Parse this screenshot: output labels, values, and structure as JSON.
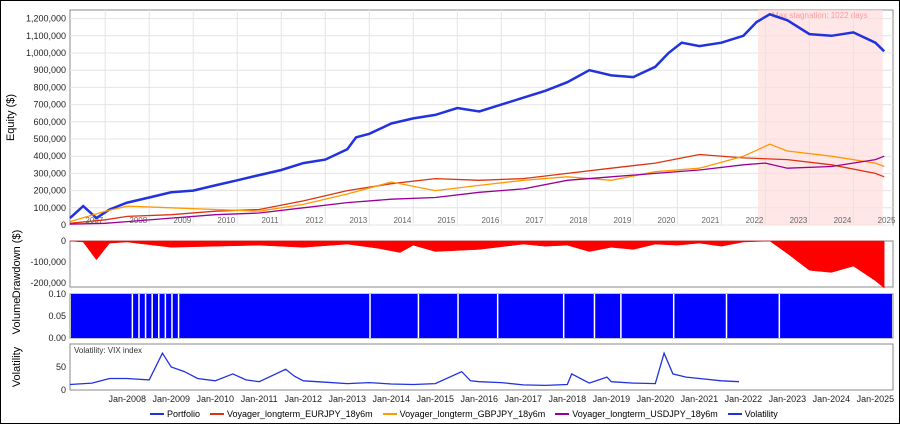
{
  "chart_data": [
    {
      "type": "line",
      "panel": "equity",
      "ylabel": "Equity ($)",
      "ylim": [
        0,
        1250000
      ],
      "yticks": [
        "0",
        "100,000",
        "200,000",
        "300,000",
        "400,000",
        "500,000",
        "600,000",
        "700,000",
        "800,000",
        "900,000",
        "1,000,000",
        "1,100,000",
        "1,200,000"
      ],
      "year_labels": [
        "2007",
        "2008",
        "2009",
        "2010",
        "2011",
        "2012",
        "2013",
        "2014",
        "2015",
        "2016",
        "2017",
        "2018",
        "2019",
        "2020",
        "2021",
        "2022",
        "2023",
        "2024",
        "2025"
      ],
      "annotation": "Max stagnation: 1022 days",
      "shaded_region": [
        "2022-05",
        "2025-03"
      ],
      "series": [
        {
          "name": "Portfolio",
          "color": "#2233dd",
          "x": [
            2006.7,
            2007.0,
            2007.3,
            2007.6,
            2008.0,
            2008.5,
            2009.0,
            2009.5,
            2010.0,
            2010.5,
            2011.0,
            2011.5,
            2012.0,
            2012.5,
            2013.0,
            2013.2,
            2013.5,
            2014.0,
            2014.5,
            2015.0,
            2015.5,
            2016.0,
            2016.5,
            2017.0,
            2017.5,
            2018.0,
            2018.5,
            2019.0,
            2019.5,
            2020.0,
            2020.3,
            2020.6,
            2021.0,
            2021.5,
            2022.0,
            2022.3,
            2022.6,
            2023.0,
            2023.5,
            2024.0,
            2024.5,
            2025.0,
            2025.2
          ],
          "values": [
            40000,
            110000,
            40000,
            90000,
            130000,
            160000,
            190000,
            200000,
            230000,
            260000,
            290000,
            320000,
            360000,
            380000,
            440000,
            510000,
            530000,
            590000,
            620000,
            640000,
            680000,
            660000,
            700000,
            740000,
            780000,
            830000,
            900000,
            870000,
            860000,
            920000,
            1000000,
            1060000,
            1040000,
            1060000,
            1100000,
            1180000,
            1225000,
            1190000,
            1110000,
            1100000,
            1120000,
            1060000,
            1010000
          ]
        },
        {
          "name": "Voyager_longterm_EURJPY_18y6m",
          "color": "#dd3311",
          "x": [
            2006.7,
            2007.5,
            2008.0,
            2009.0,
            2010.0,
            2011.0,
            2012.0,
            2013.0,
            2014.0,
            2015.0,
            2016.0,
            2017.0,
            2018.0,
            2019.0,
            2020.0,
            2021.0,
            2022.0,
            2023.0,
            2024.0,
            2025.0,
            2025.2
          ],
          "values": [
            10000,
            30000,
            50000,
            60000,
            80000,
            90000,
            140000,
            200000,
            240000,
            270000,
            260000,
            270000,
            300000,
            330000,
            360000,
            410000,
            390000,
            380000,
            350000,
            300000,
            280000
          ]
        },
        {
          "name": "Voyager_longterm_GBPJPY_18y6m",
          "color": "#ff9900",
          "x": [
            2006.7,
            2007.5,
            2008.0,
            2009.0,
            2010.0,
            2011.0,
            2012.0,
            2013.0,
            2014.0,
            2015.0,
            2016.0,
            2017.0,
            2018.0,
            2019.0,
            2020.0,
            2021.0,
            2022.0,
            2022.6,
            2023.0,
            2024.0,
            2025.0,
            2025.2
          ],
          "values": [
            20000,
            80000,
            110000,
            100000,
            90000,
            80000,
            120000,
            180000,
            250000,
            200000,
            230000,
            260000,
            280000,
            260000,
            310000,
            330000,
            400000,
            470000,
            430000,
            400000,
            360000,
            340000
          ]
        },
        {
          "name": "Voyager_longterm_USDJPY_18y6m",
          "color": "#990099",
          "x": [
            2006.7,
            2007.5,
            2008.0,
            2009.0,
            2010.0,
            2011.0,
            2012.0,
            2013.0,
            2014.0,
            2015.0,
            2016.0,
            2017.0,
            2018.0,
            2019.0,
            2020.0,
            2021.0,
            2022.0,
            2022.5,
            2023.0,
            2024.0,
            2025.0,
            2025.2
          ],
          "values": [
            5000,
            10000,
            20000,
            40000,
            60000,
            70000,
            100000,
            130000,
            150000,
            160000,
            190000,
            210000,
            260000,
            280000,
            300000,
            320000,
            350000,
            360000,
            330000,
            340000,
            380000,
            400000
          ]
        }
      ]
    },
    {
      "type": "area",
      "panel": "drawdown",
      "ylabel": "Drawdown ($)",
      "ylim": [
        -220000,
        0
      ],
      "yticks": [
        "0",
        "-100,000",
        "-200,000"
      ],
      "series": [
        {
          "name": "Drawdown",
          "color": "#ff0000",
          "x": [
            2006.7,
            2007.0,
            2007.3,
            2007.6,
            2008.0,
            2009.0,
            2010.0,
            2011.0,
            2012.0,
            2013.0,
            2013.7,
            2014.2,
            2014.5,
            2015.0,
            2016.0,
            2017.0,
            2017.5,
            2018.0,
            2018.5,
            2019.0,
            2019.5,
            2020.0,
            2020.5,
            2021.0,
            2021.5,
            2022.0,
            2022.6,
            2023.0,
            2023.5,
            2024.0,
            2024.5,
            2025.0,
            2025.2
          ],
          "values": [
            0,
            -5000,
            -90000,
            -10000,
            -5000,
            -30000,
            -25000,
            -20000,
            -30000,
            -15000,
            -35000,
            -55000,
            -20000,
            -50000,
            -40000,
            -15000,
            -25000,
            -20000,
            -50000,
            -30000,
            -40000,
            -15000,
            -20000,
            -10000,
            -25000,
            -5000,
            0,
            -60000,
            -140000,
            -150000,
            -120000,
            -190000,
            -225000
          ]
        }
      ]
    },
    {
      "type": "area",
      "panel": "volume",
      "ylabel": "Volume",
      "ylim": [
        0,
        0.1
      ],
      "yticks": [
        "0.00",
        "0.05",
        "0.10"
      ],
      "series": [
        {
          "name": "Volume",
          "color": "#0000ff",
          "values": [
            0.1
          ]
        }
      ]
    },
    {
      "type": "line",
      "panel": "volatility",
      "ylabel": "Volatility",
      "title": "Volatility: VIX index",
      "ylim": [
        0,
        100
      ],
      "yticks": [
        "0",
        "50"
      ],
      "xticks": [
        "Jan-2008",
        "Jan-2009",
        "Jan-2010",
        "Jan-2011",
        "Jan-2012",
        "Jan-2013",
        "Jan-2014",
        "Jan-2015",
        "Jan-2016",
        "Jan-2017",
        "Jan-2018",
        "Jan-2019",
        "Jan-2020",
        "Jan-2021",
        "Jan-2022",
        "Jan-2023",
        "Jan-2024",
        "Jan-2025"
      ],
      "series": [
        {
          "name": "Volatility",
          "color": "#2233dd",
          "x": [
            2006.7,
            2007.2,
            2007.6,
            2008.0,
            2008.5,
            2008.8,
            2009.0,
            2009.3,
            2009.6,
            2010.0,
            2010.4,
            2010.7,
            2011.0,
            2011.6,
            2011.8,
            2012.0,
            2012.5,
            2013.0,
            2013.5,
            2014.0,
            2014.5,
            2015.0,
            2015.6,
            2015.8,
            2016.0,
            2016.5,
            2017.0,
            2017.5,
            2018.0,
            2018.1,
            2018.5,
            2018.9,
            2019.0,
            2019.5,
            2020.0,
            2020.2,
            2020.4,
            2020.7,
            2021.0,
            2021.5,
            2021.9
          ],
          "values": [
            12,
            15,
            25,
            25,
            22,
            80,
            50,
            40,
            25,
            20,
            35,
            22,
            18,
            45,
            30,
            20,
            17,
            14,
            16,
            13,
            12,
            14,
            40,
            20,
            18,
            16,
            11,
            10,
            12,
            35,
            15,
            28,
            18,
            15,
            14,
            80,
            35,
            28,
            25,
            20,
            18
          ]
        }
      ]
    }
  ],
  "legend": [
    {
      "label": "Portfolio",
      "color": "#2233dd"
    },
    {
      "label": "Voyager_longterm_EURJPY_18y6m",
      "color": "#dd3311"
    },
    {
      "label": "Voyager_longterm_GBPJPY_18y6m",
      "color": "#ff9900"
    },
    {
      "label": "Voyager_longterm_USDJPY_18y6m",
      "color": "#990099"
    },
    {
      "label": "Volatility",
      "color": "#2233dd"
    }
  ]
}
